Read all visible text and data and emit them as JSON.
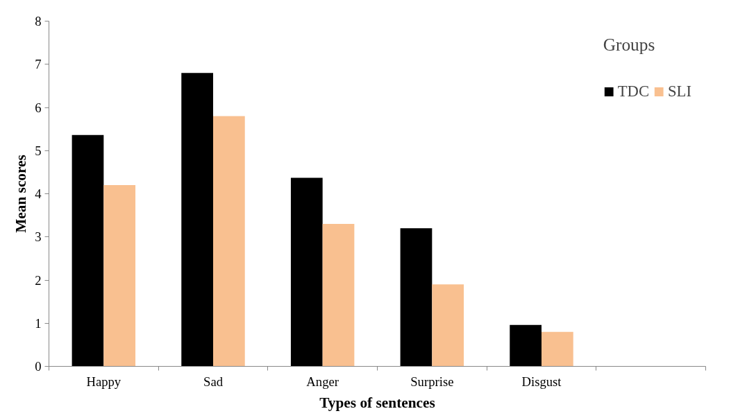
{
  "chart_data": {
    "type": "bar",
    "xlabel": "Types of sentences",
    "ylabel": "Mean scores",
    "legend_title": "Groups",
    "categories": [
      "Happy",
      "Sad",
      "Anger",
      "Surprise",
      "Disgust",
      null
    ],
    "series": [
      {
        "name": "TDC",
        "color": "#000000",
        "values": [
          5.36,
          6.8,
          4.37,
          3.2,
          0.96,
          null
        ]
      },
      {
        "name": "SLI",
        "color": "#f9c090",
        "values": [
          4.2,
          5.8,
          3.3,
          1.9,
          0.8,
          null
        ]
      }
    ],
    "ylim": [
      0,
      8
    ],
    "yticks": [
      0,
      1,
      2,
      3,
      4,
      5,
      6,
      7,
      8
    ],
    "grid": false,
    "legend": "top right"
  }
}
